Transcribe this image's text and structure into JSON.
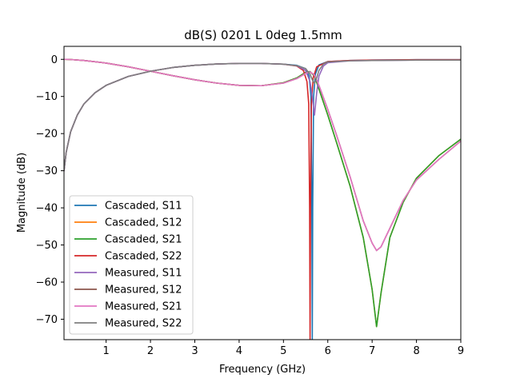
{
  "chart_data": {
    "type": "line",
    "title": "dB(S) 0201 L 0deg 1.5mm",
    "xlabel": "Frequency (GHz)",
    "ylabel": "Magnitude (dB)",
    "xlim": [
      0.05,
      9.0
    ],
    "ylim": [
      -75.5,
      3.5
    ],
    "x_ticks": [
      1,
      2,
      3,
      4,
      5,
      6,
      7,
      8,
      9
    ],
    "x_tick_labels": [
      "1",
      "2",
      "3",
      "4",
      "5",
      "6",
      "7",
      "8",
      "9"
    ],
    "y_ticks": [
      0,
      -10,
      -20,
      -30,
      -40,
      -50,
      -60,
      -70
    ],
    "y_tick_labels": [
      "0",
      "−10",
      "−20",
      "−30",
      "−40",
      "−50",
      "−60",
      "−70"
    ],
    "grid": false,
    "legend_position": "lower-left",
    "series": [
      {
        "name": "Cascaded, S11",
        "color": "#1f77b4",
        "x": [
          0.05,
          0.1,
          0.2,
          0.35,
          0.5,
          0.75,
          1.0,
          1.5,
          2.0,
          2.5,
          3.0,
          3.5,
          4.0,
          4.5,
          5.0,
          5.3,
          5.5,
          5.58,
          5.62,
          5.64,
          5.65,
          5.66,
          5.68,
          5.72,
          5.8,
          6.0,
          6.5,
          7.0,
          8.0,
          9.0
        ],
        "y": [
          -30.0,
          -25.0,
          -19.5,
          -15.0,
          -12.0,
          -9.0,
          -7.0,
          -4.6,
          -3.2,
          -2.2,
          -1.6,
          -1.25,
          -1.1,
          -1.1,
          -1.3,
          -1.6,
          -2.5,
          -4.5,
          -10,
          -40,
          -75.5,
          -40,
          -10,
          -4,
          -1.5,
          -0.6,
          -0.3,
          -0.2,
          -0.1,
          -0.1
        ]
      },
      {
        "name": "Cascaded, S12",
        "color": "#ff7f0e",
        "x": [
          0.05,
          0.2,
          0.5,
          1.0,
          1.5,
          2.0,
          2.5,
          3.0,
          3.5,
          4.0,
          4.5,
          5.0,
          5.3,
          5.5,
          5.6,
          5.7,
          5.8,
          6.0,
          6.2,
          6.5,
          6.8,
          7.0,
          7.1,
          7.2,
          7.4,
          7.7,
          8.0,
          8.5,
          9.0
        ],
        "y": [
          0.0,
          -0.05,
          -0.3,
          -1.0,
          -2.0,
          -3.2,
          -4.4,
          -5.5,
          -6.4,
          -7.0,
          -7.1,
          -6.3,
          -5.0,
          -3.5,
          -3.3,
          -4.5,
          -8.0,
          -15.0,
          -22.5,
          -34.0,
          -48.0,
          -62.0,
          -72.0,
          -63.0,
          -48.0,
          -38.5,
          -32.0,
          -26.0,
          -21.5
        ]
      },
      {
        "name": "Cascaded, S21",
        "color": "#2ca02c",
        "x": [
          0.05,
          0.2,
          0.5,
          1.0,
          1.5,
          2.0,
          2.5,
          3.0,
          3.5,
          4.0,
          4.5,
          5.0,
          5.3,
          5.5,
          5.6,
          5.7,
          5.8,
          6.0,
          6.2,
          6.5,
          6.8,
          7.0,
          7.1,
          7.2,
          7.4,
          7.7,
          8.0,
          8.5,
          9.0
        ],
        "y": [
          0.0,
          -0.05,
          -0.3,
          -1.0,
          -2.0,
          -3.2,
          -4.4,
          -5.5,
          -6.4,
          -7.0,
          -7.1,
          -6.3,
          -5.0,
          -3.5,
          -3.3,
          -4.5,
          -8.0,
          -15.0,
          -22.5,
          -34.0,
          -48.0,
          -62.0,
          -72.0,
          -63.0,
          -48.0,
          -38.5,
          -32.0,
          -26.0,
          -21.5
        ]
      },
      {
        "name": "Cascaded, S22",
        "color": "#d62728",
        "x": [
          0.05,
          0.1,
          0.2,
          0.35,
          0.5,
          0.75,
          1.0,
          1.5,
          2.0,
          2.5,
          3.0,
          3.5,
          4.0,
          4.5,
          5.0,
          5.3,
          5.45,
          5.53,
          5.57,
          5.59,
          5.6,
          5.61,
          5.63,
          5.67,
          5.75,
          6.0,
          6.5,
          7.0,
          8.0,
          9.0
        ],
        "y": [
          -30.0,
          -25.0,
          -19.5,
          -15.0,
          -12.0,
          -9.0,
          -7.0,
          -4.6,
          -3.2,
          -2.2,
          -1.6,
          -1.25,
          -1.1,
          -1.1,
          -1.3,
          -1.8,
          -3.0,
          -6.0,
          -12,
          -40,
          -75.5,
          -40,
          -12,
          -5,
          -2.0,
          -0.6,
          -0.3,
          -0.2,
          -0.1,
          -0.1
        ]
      },
      {
        "name": "Measured, S11",
        "color": "#9467bd",
        "x": [
          0.05,
          0.1,
          0.2,
          0.35,
          0.5,
          0.75,
          1.0,
          1.5,
          2.0,
          2.5,
          3.0,
          3.5,
          4.0,
          4.5,
          5.0,
          5.3,
          5.5,
          5.6,
          5.65,
          5.7,
          5.75,
          5.8,
          5.9,
          6.0,
          6.5,
          7.0,
          8.0,
          9.0
        ],
        "y": [
          -30.0,
          -25.0,
          -19.5,
          -15.0,
          -12.0,
          -9.0,
          -7.0,
          -4.6,
          -3.2,
          -2.2,
          -1.6,
          -1.25,
          -1.1,
          -1.1,
          -1.3,
          -1.7,
          -3.0,
          -6.0,
          -10.0,
          -15.0,
          -9.0,
          -4.5,
          -1.8,
          -0.9,
          -0.4,
          -0.3,
          -0.2,
          -0.2
        ]
      },
      {
        "name": "Measured, S12",
        "color": "#8c564b",
        "x": [
          0.05,
          0.2,
          0.5,
          1.0,
          1.5,
          2.0,
          2.5,
          3.0,
          3.5,
          4.0,
          4.5,
          5.0,
          5.3,
          5.5,
          5.6,
          5.7,
          5.8,
          6.0,
          6.2,
          6.5,
          6.8,
          7.0,
          7.1,
          7.2,
          7.4,
          7.7,
          8.0,
          8.5,
          9.0
        ],
        "y": [
          0.0,
          -0.05,
          -0.3,
          -1.0,
          -2.0,
          -3.2,
          -4.4,
          -5.5,
          -6.4,
          -7.0,
          -7.1,
          -6.4,
          -5.2,
          -3.8,
          -3.4,
          -4.2,
          -7.0,
          -13.5,
          -20.5,
          -31.5,
          -43.5,
          -49.5,
          -51.5,
          -50.5,
          -45.5,
          -38.0,
          -32.5,
          -27.0,
          -22.0
        ]
      },
      {
        "name": "Measured, S21",
        "color": "#e377c2",
        "x": [
          0.05,
          0.2,
          0.5,
          1.0,
          1.5,
          2.0,
          2.5,
          3.0,
          3.5,
          4.0,
          4.5,
          5.0,
          5.3,
          5.5,
          5.6,
          5.7,
          5.8,
          6.0,
          6.2,
          6.5,
          6.8,
          7.0,
          7.1,
          7.2,
          7.4,
          7.7,
          8.0,
          8.5,
          9.0
        ],
        "y": [
          0.0,
          -0.05,
          -0.3,
          -1.0,
          -2.0,
          -3.2,
          -4.4,
          -5.5,
          -6.4,
          -7.0,
          -7.1,
          -6.4,
          -5.2,
          -3.8,
          -3.4,
          -4.2,
          -7.0,
          -13.5,
          -20.5,
          -31.5,
          -43.5,
          -49.5,
          -51.5,
          -50.5,
          -45.5,
          -38.0,
          -32.5,
          -27.0,
          -22.0
        ]
      },
      {
        "name": "Measured, S22",
        "color": "#7f7f7f",
        "x": [
          0.05,
          0.1,
          0.2,
          0.35,
          0.5,
          0.75,
          1.0,
          1.5,
          2.0,
          2.5,
          3.0,
          3.5,
          4.0,
          4.5,
          5.0,
          5.3,
          5.5,
          5.6,
          5.65,
          5.7,
          5.75,
          5.8,
          5.9,
          6.0,
          6.5,
          7.0,
          8.0,
          9.0
        ],
        "y": [
          -30.0,
          -25.0,
          -19.5,
          -15.0,
          -12.0,
          -9.0,
          -7.0,
          -4.6,
          -3.2,
          -2.2,
          -1.6,
          -1.25,
          -1.1,
          -1.1,
          -1.3,
          -1.7,
          -2.5,
          -4.0,
          -5.5,
          -6.5,
          -5.0,
          -3.0,
          -1.3,
          -0.7,
          -0.4,
          -0.3,
          -0.2,
          -0.2
        ]
      }
    ]
  }
}
